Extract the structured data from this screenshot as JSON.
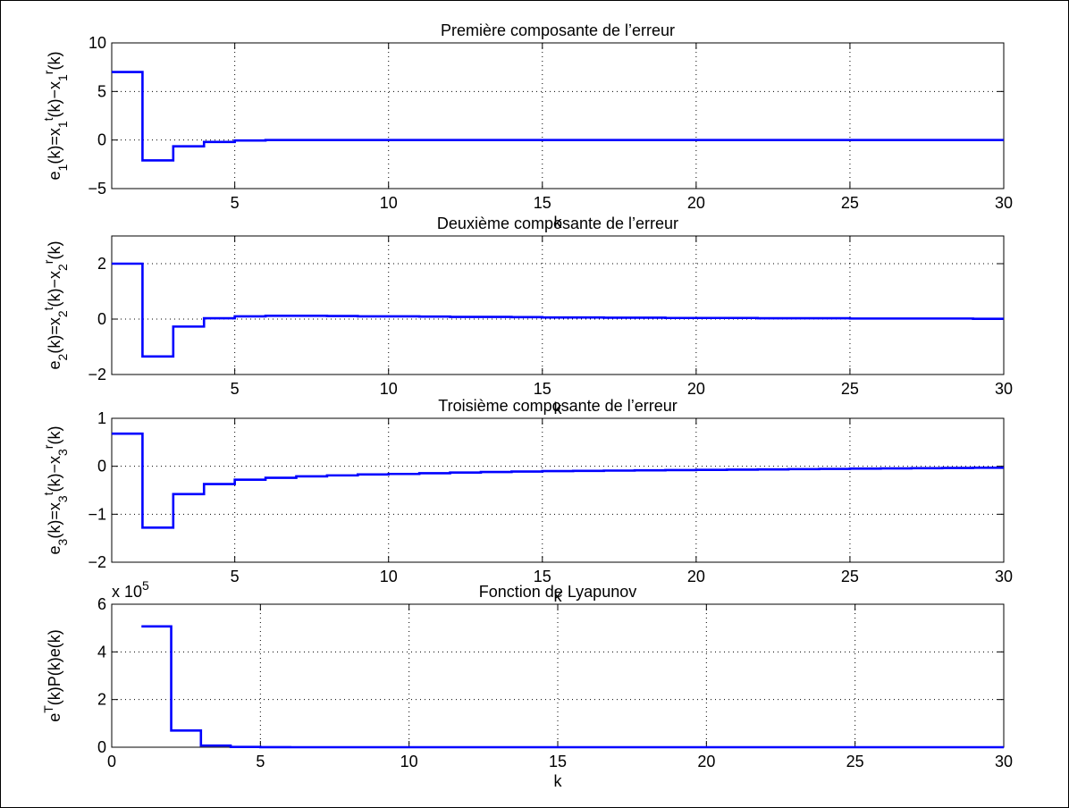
{
  "chart_data": [
    {
      "type": "line",
      "title": "Première composante de l’erreur",
      "xlabel": "k",
      "ylabel": "e₁(k)=x₁ᵗ(k)−x₁ʳ(k)",
      "xlim": [
        1,
        30
      ],
      "ylim": [
        -5,
        10
      ],
      "xticks": [
        5,
        10,
        15,
        20,
        25,
        30
      ],
      "yticks": [
        -5,
        0,
        5,
        10
      ],
      "grid": true,
      "step": true,
      "series_color": "#0000ff",
      "x": [
        1,
        2,
        3,
        4,
        5,
        6,
        7,
        8,
        9,
        10,
        11,
        12,
        13,
        14,
        15,
        16,
        17,
        18,
        19,
        20,
        21,
        22,
        23,
        24,
        25,
        26,
        27,
        28,
        29,
        30
      ],
      "y": [
        7,
        -2.1,
        -0.65,
        -0.2,
        -0.05,
        0,
        0,
        0,
        0,
        0,
        0,
        0,
        0,
        0,
        0,
        0,
        0,
        0,
        0,
        0,
        0,
        0,
        0,
        0,
        0,
        0,
        0,
        0,
        0,
        0
      ]
    },
    {
      "type": "line",
      "title": "Deuxième composante de l’erreur",
      "xlabel": "k",
      "ylabel": "e₂(k)=x₂ᵗ(k)−x₂ʳ(k)",
      "xlim": [
        1,
        30
      ],
      "ylim": [
        -2,
        3
      ],
      "xticks": [
        5,
        10,
        15,
        20,
        25,
        30
      ],
      "yticks": [
        -2,
        0,
        2
      ],
      "grid": true,
      "step": true,
      "series_color": "#0000ff",
      "x": [
        1,
        2,
        3,
        4,
        5,
        6,
        7,
        8,
        9,
        10,
        11,
        12,
        13,
        14,
        15,
        16,
        17,
        18,
        19,
        20,
        21,
        22,
        23,
        24,
        25,
        26,
        27,
        28,
        29,
        30
      ],
      "y": [
        2,
        -1.35,
        -0.27,
        0.03,
        0.1,
        0.12,
        0.12,
        0.11,
        0.1,
        0.1,
        0.09,
        0.08,
        0.08,
        0.07,
        0.06,
        0.06,
        0.05,
        0.05,
        0.04,
        0.04,
        0.04,
        0.03,
        0.03,
        0.03,
        0.02,
        0.02,
        0.02,
        0.02,
        0.01,
        0.01
      ]
    },
    {
      "type": "line",
      "title": "Troisième  composante de l’erreur",
      "xlabel": "k",
      "ylabel": "e₃(k)=x₃ᵗ(k)−x₃ʳ(k)",
      "xlim": [
        1,
        30
      ],
      "ylim": [
        -2,
        1
      ],
      "xticks": [
        5,
        10,
        15,
        20,
        25,
        30
      ],
      "yticks": [
        -2,
        -1,
        0,
        1
      ],
      "grid": true,
      "step": true,
      "series_color": "#0000ff",
      "x": [
        1,
        2,
        3,
        4,
        5,
        6,
        7,
        8,
        9,
        10,
        11,
        12,
        13,
        14,
        15,
        16,
        17,
        18,
        19,
        20,
        21,
        22,
        23,
        24,
        25,
        26,
        27,
        28,
        29,
        30
      ],
      "y": [
        0.68,
        -1.28,
        -0.58,
        -0.37,
        -0.28,
        -0.24,
        -0.21,
        -0.19,
        -0.17,
        -0.16,
        -0.145,
        -0.13,
        -0.12,
        -0.11,
        -0.1,
        -0.095,
        -0.09,
        -0.085,
        -0.08,
        -0.075,
        -0.07,
        -0.065,
        -0.06,
        -0.055,
        -0.05,
        -0.045,
        -0.04,
        -0.035,
        -0.03,
        -0.03
      ]
    },
    {
      "type": "line",
      "title": "Fonction de Lyapunov",
      "xlabel": "k",
      "ylabel": "eᵀ(k)P(k)e(k)",
      "multiplier": "x 10⁵",
      "xlim": [
        0,
        30
      ],
      "ylim": [
        0,
        600000
      ],
      "xticks": [
        0,
        5,
        10,
        15,
        20,
        25,
        30
      ],
      "yticks": [
        0,
        200000,
        400000,
        600000
      ],
      "yticklabels": [
        "0",
        "2",
        "4",
        "6"
      ],
      "grid": true,
      "step": true,
      "series_color": "#0000ff",
      "x": [
        1,
        2,
        3,
        4,
        5,
        6,
        7,
        8,
        9,
        10,
        11,
        12,
        13,
        14,
        15,
        16,
        17,
        18,
        19,
        20,
        21,
        22,
        23,
        24,
        25,
        26,
        27,
        28,
        29,
        30
      ],
      "y": [
        507000,
        70000,
        7000,
        1000,
        200,
        0,
        0,
        0,
        0,
        0,
        0,
        0,
        0,
        0,
        0,
        0,
        0,
        0,
        0,
        0,
        0,
        0,
        0,
        0,
        0,
        0,
        0,
        0,
        0,
        0
      ]
    }
  ]
}
